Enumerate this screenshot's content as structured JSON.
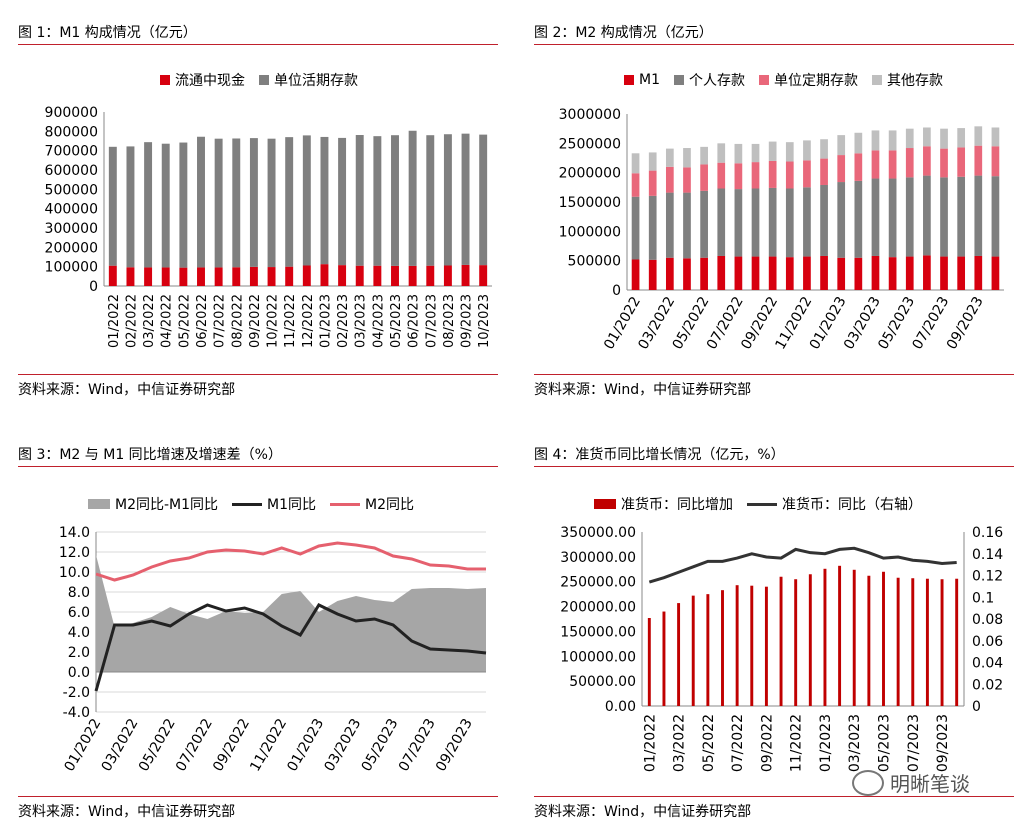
{
  "panels": [
    {
      "title": "图 1：M1 构成情况（亿元）",
      "source": "资料来源：Wind，中信证券研究部",
      "chart_data": {
        "type": "bar",
        "stacked": true,
        "categories": [
          "01/2022",
          "02/2022",
          "03/2022",
          "04/2022",
          "05/2022",
          "06/2022",
          "07/2022",
          "08/2022",
          "09/2022",
          "10/2022",
          "11/2022",
          "12/2022",
          "01/2023",
          "02/2023",
          "03/2023",
          "04/2023",
          "05/2023",
          "06/2023",
          "07/2023",
          "08/2023",
          "09/2023",
          "10/2023"
        ],
        "series": [
          {
            "name": "流通中现金",
            "color": "#d7000f",
            "values": [
              105000,
              97000,
              96000,
              96000,
              95000,
              96000,
              96000,
              97000,
              99000,
              98000,
              100000,
              106000,
              113000,
              108000,
              105000,
              105000,
              104000,
              104000,
              105000,
              106000,
              109000,
              108000
            ]
          },
          {
            "name": "单位活期存款",
            "color": "#7f7f7f",
            "values": [
              615000,
              625000,
              648000,
              640000,
              647000,
              676000,
              666000,
              666000,
              666000,
              664000,
              670000,
              673000,
              658000,
              658000,
              676000,
              670000,
              676000,
              699000,
              675000,
              679000,
              679000,
              675000
            ]
          }
        ],
        "yticks": [
          "0",
          "100000",
          "200000",
          "300000",
          "400000",
          "500000",
          "600000",
          "700000",
          "800000",
          "900000"
        ],
        "ylim": [
          0,
          900000
        ],
        "legend_position": "top",
        "grid": false
      }
    },
    {
      "title": "图 2：M2 构成情况（亿元）",
      "source": "资料来源：Wind，中信证券研究部",
      "chart_data": {
        "type": "bar",
        "stacked": true,
        "categories": [
          "01/2022",
          "02/2022",
          "03/2022",
          "04/2022",
          "05/2022",
          "06/2022",
          "07/2022",
          "08/2022",
          "09/2022",
          "10/2022",
          "11/2022",
          "12/2022",
          "01/2023",
          "02/2023",
          "03/2023",
          "04/2023",
          "05/2023",
          "06/2023",
          "07/2023",
          "08/2023",
          "09/2023",
          "10/2023"
        ],
        "xtick_labels": [
          "01/2022",
          "03/2022",
          "05/2022",
          "07/2022",
          "09/2022",
          "11/2022",
          "01/2023",
          "03/2023",
          "05/2023",
          "07/2023",
          "09/2023"
        ],
        "series": [
          {
            "name": "M1",
            "color": "#d7000f",
            "values": [
              520000,
              515000,
              550000,
              540000,
              550000,
              580000,
              570000,
              570000,
              570000,
              560000,
              570000,
              580000,
              550000,
              550000,
              580000,
              560000,
              570000,
              590000,
              570000,
              570000,
              580000,
              570000
            ]
          },
          {
            "name": "个人存款",
            "color": "#7f7f7f",
            "values": [
              1070000,
              1090000,
              1110000,
              1120000,
              1140000,
              1150000,
              1150000,
              1160000,
              1170000,
              1170000,
              1180000,
              1210000,
              1290000,
              1310000,
              1320000,
              1340000,
              1350000,
              1360000,
              1350000,
              1360000,
              1370000,
              1370000
            ]
          },
          {
            "name": "单位定期存款",
            "color": "#e9677a",
            "values": [
              400000,
              430000,
              440000,
              430000,
              450000,
              440000,
              440000,
              450000,
              460000,
              460000,
              460000,
              450000,
              460000,
              470000,
              480000,
              480000,
              500000,
              500000,
              490000,
              500000,
              510000,
              510000
            ]
          },
          {
            "name": "其他存款",
            "color": "#bfbfbf",
            "values": [
              340000,
              310000,
              310000,
              330000,
              300000,
              330000,
              330000,
              310000,
              330000,
              330000,
              340000,
              330000,
              340000,
              350000,
              340000,
              340000,
              330000,
              320000,
              340000,
              330000,
              330000,
              320000
            ]
          }
        ],
        "yticks": [
          "0",
          "500000",
          "1000000",
          "1500000",
          "2000000",
          "2500000",
          "3000000"
        ],
        "ylim": [
          0,
          3000000
        ],
        "legend_position": "top",
        "grid": false
      }
    },
    {
      "title": "图 3：M2 与 M1 同比增速及增速差（%）",
      "source": "资料来源：Wind，中信证券研究部",
      "chart_data": {
        "type": "area",
        "x": [
          "01/2022",
          "02/2022",
          "03/2022",
          "04/2022",
          "05/2022",
          "06/2022",
          "07/2022",
          "08/2022",
          "09/2022",
          "10/2022",
          "11/2022",
          "12/2022",
          "01/2023",
          "02/2023",
          "03/2023",
          "04/2023",
          "05/2023",
          "06/2023",
          "07/2023",
          "08/2023",
          "09/2023",
          "10/2023"
        ],
        "xtick_labels": [
          "01/2022",
          "03/2022",
          "05/2022",
          "07/2022",
          "09/2022",
          "11/2022",
          "01/2023",
          "03/2023",
          "05/2023",
          "07/2023",
          "09/2023"
        ],
        "series": [
          {
            "name": "M2同比-M1同比",
            "kind": "area",
            "color": "#a6a6a6",
            "values": [
              11.7,
              4.5,
              4.9,
              5.5,
              6.5,
              5.8,
              5.3,
              6.1,
              5.9,
              6.0,
              7.8,
              8.1,
              6.0,
              7.1,
              7.6,
              7.2,
              7.0,
              8.3,
              8.4,
              8.4,
              8.3,
              8.4
            ]
          },
          {
            "name": "M1同比",
            "kind": "line",
            "color": "#222222",
            "values": [
              -1.9,
              4.7,
              4.7,
              5.1,
              4.6,
              5.8,
              6.7,
              6.1,
              6.4,
              5.8,
              4.6,
              3.7,
              6.7,
              5.8,
              5.1,
              5.3,
              4.7,
              3.1,
              2.3,
              2.2,
              2.1,
              1.9
            ]
          },
          {
            "name": "M2同比",
            "kind": "line",
            "color": "#e5606e",
            "values": [
              9.8,
              9.2,
              9.7,
              10.5,
              11.1,
              11.4,
              12.0,
              12.2,
              12.1,
              11.8,
              12.4,
              11.8,
              12.6,
              12.9,
              12.7,
              12.4,
              11.6,
              11.3,
              10.7,
              10.6,
              10.3,
              10.3
            ]
          }
        ],
        "yticks": [
          "-4.0",
          "-2.0",
          "0.0",
          "2.0",
          "4.0",
          "6.0",
          "8.0",
          "10.0",
          "12.0",
          "14.0"
        ],
        "ylim": [
          -4,
          14
        ],
        "legend_position": "top",
        "grid": true
      }
    },
    {
      "title": "图 4：准货币同比增长情况（亿元，%）",
      "source": "资料来源：Wind，中信证券研究部",
      "chart_data": {
        "type": "bar",
        "x": [
          "01/2022",
          "02/2022",
          "03/2022",
          "04/2022",
          "05/2022",
          "06/2022",
          "07/2022",
          "08/2022",
          "09/2022",
          "10/2022",
          "11/2022",
          "12/2022",
          "01/2023",
          "02/2023",
          "03/2023",
          "04/2023",
          "05/2023",
          "06/2023",
          "07/2023",
          "08/2023",
          "09/2023",
          "10/2023"
        ],
        "xtick_labels": [
          "01/2022",
          "03/2022",
          "05/2022",
          "07/2022",
          "09/2022",
          "11/2022",
          "01/2023",
          "03/2023",
          "05/2023",
          "07/2023",
          "09/2023"
        ],
        "series": [
          {
            "name": "准货币：同比增加",
            "kind": "bar",
            "axis": "left",
            "color": "#c00000",
            "values": [
              177000,
              190000,
              207000,
              222000,
              225000,
              233000,
              243000,
              242000,
              240000,
              260000,
              255000,
              265000,
              276000,
              282000,
              274000,
              262000,
              270000,
              258000,
              257000,
              256000,
              255000,
              256000
            ]
          },
          {
            "name": "准货币：同比（右轴）",
            "kind": "line",
            "axis": "right",
            "color": "#333333",
            "values": [
              0.114,
              0.118,
              0.123,
              0.128,
              0.133,
              0.133,
              0.136,
              0.14,
              0.137,
              0.136,
              0.144,
              0.141,
              0.14,
              0.144,
              0.145,
              0.141,
              0.136,
              0.137,
              0.134,
              0.133,
              0.131,
              0.132
            ]
          }
        ],
        "yticks_left": [
          "0.00",
          "50000.00",
          "100000.00",
          "150000.00",
          "200000.00",
          "250000.00",
          "300000.00",
          "350000.00"
        ],
        "ylim_left": [
          0,
          350000
        ],
        "yticks_right": [
          "0",
          "0.02",
          "0.04",
          "0.06",
          "0.08",
          "0.1",
          "0.12",
          "0.14",
          "0.16"
        ],
        "ylim_right": [
          0,
          0.16
        ],
        "legend_position": "top",
        "grid": false
      }
    }
  ],
  "watermark": {
    "text": "明晰笔谈",
    "icon": "wechat-icon"
  }
}
